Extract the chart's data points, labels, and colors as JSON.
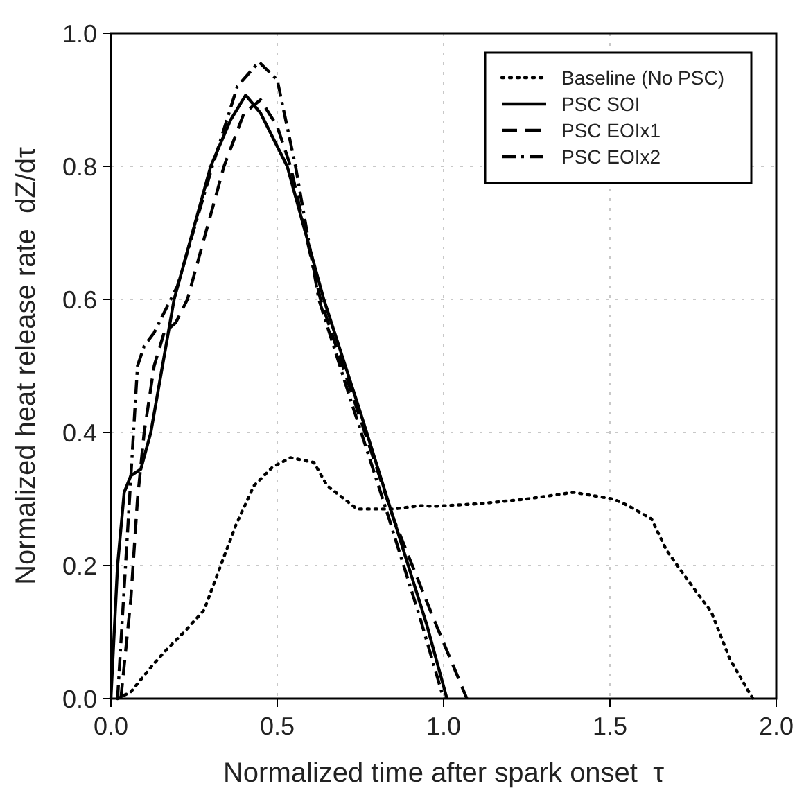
{
  "chart_data": {
    "type": "line",
    "xlabel": "Normalized time after spark onset  τ",
    "ylabel": "Normalized heat release rate  dZ/dτ",
    "xlim": [
      0,
      2
    ],
    "ylim": [
      0,
      1
    ],
    "xticks": [
      {
        "value": 0,
        "label": "0.0"
      },
      0.5,
      {
        "value": 1,
        "label": "1.0"
      },
      1.5,
      {
        "value": 2,
        "label": "2.0"
      }
    ],
    "yticks": [
      {
        "value": 0,
        "label": "0.0"
      },
      0.2,
      0.4,
      0.6,
      0.8,
      {
        "value": 1,
        "label": "1.0"
      }
    ],
    "grid": true,
    "legend": "top right",
    "marker": "none",
    "series": [
      {
        "name": "Baseline (No PSC)",
        "color": "#000000",
        "line_style": "dotted",
        "x": [
          0.02,
          0.06,
          0.125,
          0.17,
          0.22,
          0.28,
          0.33,
          0.375,
          0.43,
          0.486,
          0.54,
          0.61,
          0.65,
          0.74,
          0.85,
          0.93,
          0.97,
          1.11,
          1.25,
          1.39,
          1.51,
          1.555,
          1.625,
          1.67,
          1.74,
          1.805,
          1.86,
          1.92,
          1.93
        ],
        "values": [
          0,
          0.01,
          0.05,
          0.075,
          0.1,
          0.133,
          0.2,
          0.26,
          0.32,
          0.348,
          0.362,
          0.355,
          0.32,
          0.285,
          0.285,
          0.29,
          0.289,
          0.293,
          0.3,
          0.31,
          0.3,
          0.29,
          0.27,
          0.223,
          0.174,
          0.13,
          0.06,
          0.008,
          0
        ]
      },
      {
        "name": "PSC SOI",
        "color": "#000000",
        "line_style": "solid",
        "x": [
          0,
          0.02,
          0.04,
          0.06,
          0.09,
          0.12,
          0.19,
          0.3,
          0.36,
          0.405,
          0.45,
          0.53,
          0.64,
          0.75,
          0.85,
          0.95,
          1.01
        ],
        "values": [
          0,
          0.2,
          0.31,
          0.335,
          0.345,
          0.4,
          0.6,
          0.8,
          0.87,
          0.907,
          0.88,
          0.8,
          0.6,
          0.43,
          0.27,
          0.11,
          0
        ]
      },
      {
        "name": "PSC EOIx1",
        "color": "#000000",
        "line_style": "dashed",
        "x": [
          0.03,
          0.06,
          0.08,
          0.1,
          0.13,
          0.16,
          0.195,
          0.23,
          0.34,
          0.4,
          0.45,
          0.5,
          0.54,
          0.63,
          0.75,
          0.85,
          0.97,
          1.07
        ],
        "values": [
          0,
          0.15,
          0.3,
          0.4,
          0.5,
          0.55,
          0.565,
          0.6,
          0.8,
          0.88,
          0.9,
          0.86,
          0.8,
          0.6,
          0.42,
          0.27,
          0.12,
          0
        ]
      },
      {
        "name": "PSC EOIx2",
        "color": "#000000",
        "line_style": "dashdot",
        "x": [
          0.02,
          0.05,
          0.08,
          0.1,
          0.13,
          0.2,
          0.305,
          0.38,
          0.445,
          0.5,
          0.555,
          0.625,
          0.72,
          0.83,
          0.93,
          1.0
        ],
        "values": [
          0,
          0.25,
          0.5,
          0.53,
          0.55,
          0.62,
          0.8,
          0.92,
          0.957,
          0.93,
          0.8,
          0.6,
          0.45,
          0.28,
          0.12,
          0
        ]
      }
    ]
  }
}
